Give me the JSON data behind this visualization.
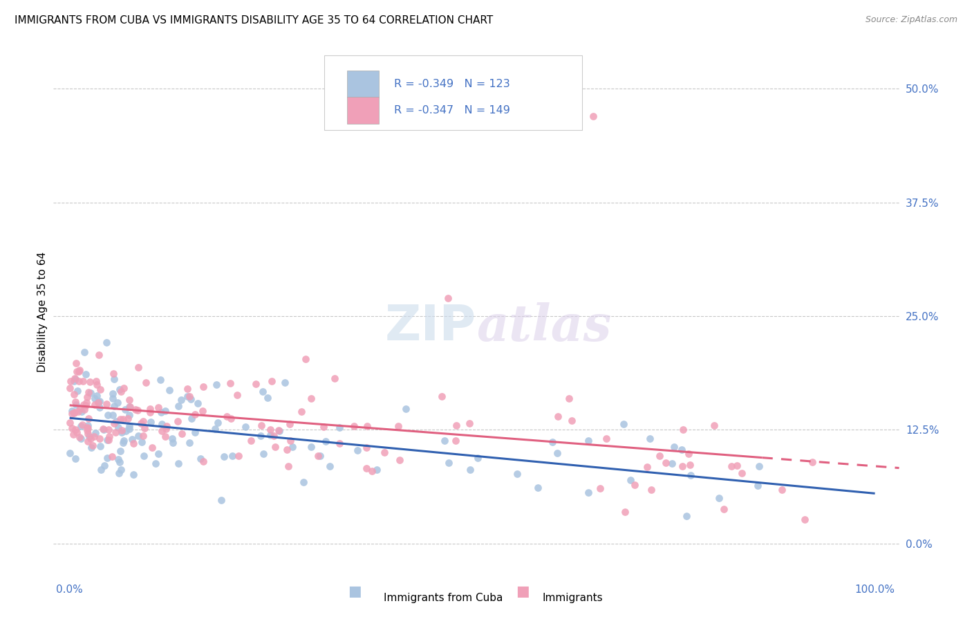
{
  "title": "IMMIGRANTS FROM CUBA VS IMMIGRANTS DISABILITY AGE 35 TO 64 CORRELATION CHART",
  "source": "Source: ZipAtlas.com",
  "ylabel": "Disability Age 35 to 64",
  "ytick_vals": [
    0.0,
    12.5,
    25.0,
    37.5,
    50.0
  ],
  "xmin": 0.0,
  "xmax": 100.0,
  "ymin": -3.0,
  "ymax": 54.0,
  "legend_label1": "Immigrants from Cuba",
  "legend_label2": "Immigrants",
  "r1": -0.349,
  "n1": 123,
  "r2": -0.347,
  "n2": 149,
  "color1": "#aac4e0",
  "color2": "#f0a0b8",
  "line_color1": "#3060b0",
  "line_color2": "#e06080",
  "trendline1_y0": 13.8,
  "trendline1_y1": 5.5,
  "trendline2_y0": 15.2,
  "trendline2_y1": 8.5,
  "background_color": "#ffffff",
  "grid_color": "#c8c8c8",
  "title_fontsize": 11,
  "axis_label_color": "#4472c4",
  "scatter1_seed": 7,
  "scatter2_seed": 13
}
